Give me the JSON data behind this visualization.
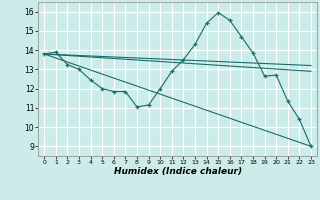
{
  "title": "",
  "xlabel": "Humidex (Indice chaleur)",
  "ylabel": "",
  "background_color": "#ccecea",
  "grid_color": "#ffffff",
  "line_color": "#1a6b6b",
  "xlim": [
    -0.5,
    23.5
  ],
  "ylim": [
    8.5,
    16.5
  ],
  "yticks": [
    9,
    10,
    11,
    12,
    13,
    14,
    15,
    16
  ],
  "xticks": [
    0,
    1,
    2,
    3,
    4,
    5,
    6,
    7,
    8,
    9,
    10,
    11,
    12,
    13,
    14,
    15,
    16,
    17,
    18,
    19,
    20,
    21,
    22,
    23
  ],
  "lines": [
    {
      "x": [
        0,
        1,
        2,
        3,
        4,
        5,
        6,
        7,
        8,
        9,
        10,
        11,
        12,
        13,
        14,
        15,
        16,
        17,
        18,
        19,
        20,
        21,
        22,
        23
      ],
      "y": [
        13.8,
        13.9,
        13.25,
        13.0,
        12.45,
        12.0,
        11.85,
        11.85,
        11.05,
        11.15,
        12.0,
        12.9,
        13.5,
        14.3,
        15.4,
        15.95,
        15.55,
        14.7,
        13.85,
        12.65,
        12.7,
        11.35,
        10.4,
        9.0
      ],
      "marker": true
    },
    {
      "x": [
        0,
        23
      ],
      "y": [
        13.8,
        13.2
      ],
      "marker": false
    },
    {
      "x": [
        0,
        23
      ],
      "y": [
        13.8,
        12.9
      ],
      "marker": false
    },
    {
      "x": [
        0,
        23
      ],
      "y": [
        13.8,
        9.0
      ],
      "marker": false
    }
  ]
}
